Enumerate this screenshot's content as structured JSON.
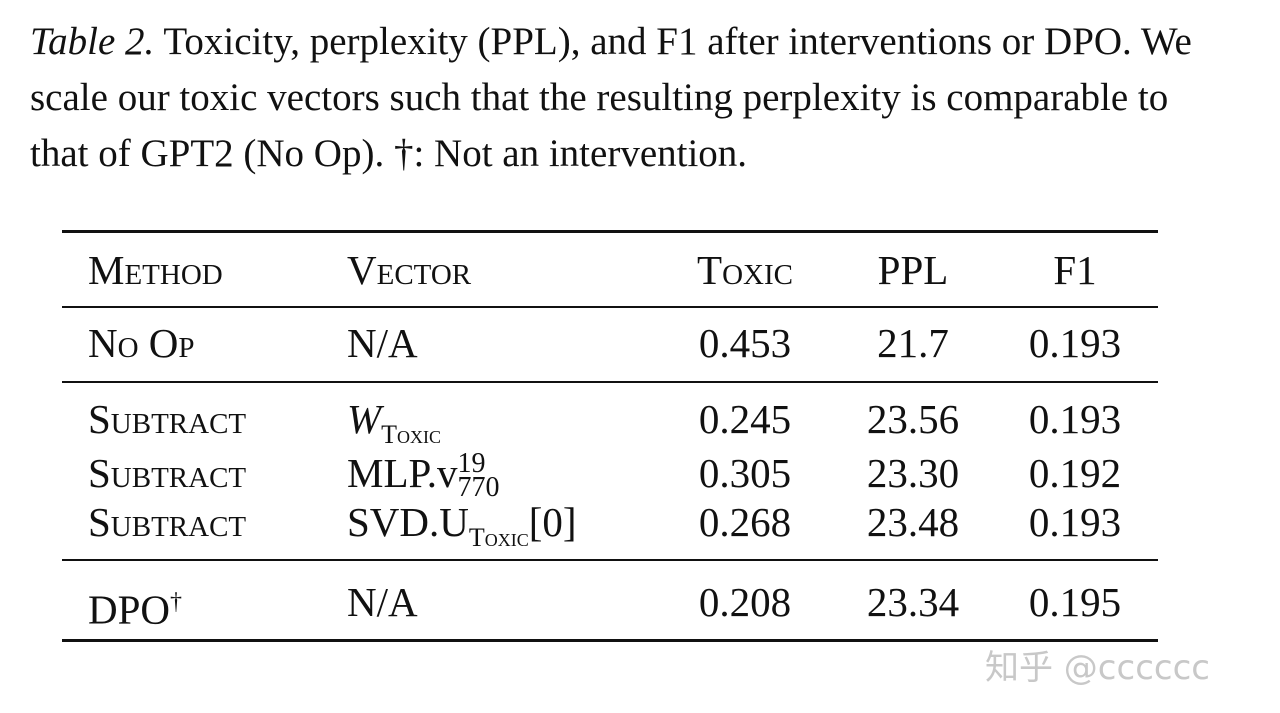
{
  "caption": {
    "label": "Table 2.",
    "text": "Toxicity, perplexity (PPL), and F1 after interventions or DPO. We scale our toxic vectors such that the resulting perplexity is comparable to that of GPT2 (No Op). †: Not an intervention."
  },
  "table": {
    "header": [
      "Method",
      "Vector",
      "Toxic",
      "PPL",
      "F1"
    ],
    "rows": [
      {
        "method": "No Op",
        "vector": {
          "base": "N/A"
        },
        "toxic": "0.453",
        "ppl": "21.7",
        "f1": "0.193"
      },
      {
        "method": "Subtract",
        "vector": {
          "base": "W",
          "sub": "Toxic"
        },
        "toxic": "0.245",
        "ppl": "23.56",
        "f1": "0.193"
      },
      {
        "method": "Subtract",
        "vector": {
          "base": "MLP.v",
          "sup": "19",
          "sub": "770"
        },
        "toxic": "0.305",
        "ppl": "23.30",
        "f1": "0.192"
      },
      {
        "method": "Subtract",
        "vector": {
          "base": "SVD.U",
          "sub": "Toxic",
          "suffix": "[0]"
        },
        "toxic": "0.268",
        "ppl": "23.48",
        "f1": "0.193"
      },
      {
        "method": "DPO",
        "method_mark": "†",
        "vector": {
          "base": "N/A"
        },
        "toxic": "0.208",
        "ppl": "23.34",
        "f1": "0.195"
      }
    ]
  },
  "watermark": "知乎 @cccccc"
}
